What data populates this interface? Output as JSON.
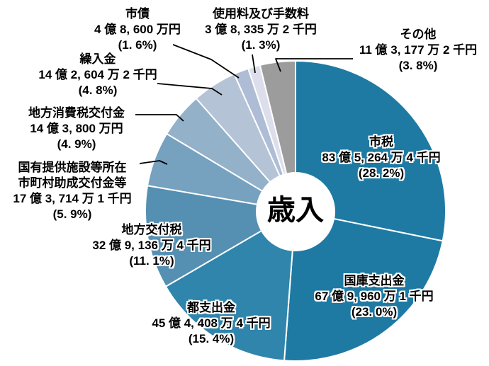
{
  "chart_data": {
    "type": "pie",
    "title": "歳入",
    "center_label": "歳入",
    "legend_position": "none",
    "start_angle": "12-oclock-clockwise",
    "slices": [
      {
        "id": "city-tax",
        "name": "市税",
        "amount": "83 億 5, 264 万 4 千円",
        "pct": "(28. 2%)",
        "percent": 28.2,
        "color": "#1e7aa3"
      },
      {
        "id": "national-treasury-disbursements",
        "name": "国庫支出金",
        "amount": "67 億 9, 960 万 1 千円",
        "pct": "(23. 0%)",
        "percent": 23.0,
        "color": "#1e7aa3"
      },
      {
        "id": "metropolitan-disbursements",
        "name": "都支出金",
        "amount": "45 億 4, 408 万 4 千円",
        "pct": "(15. 4%)",
        "percent": 15.4,
        "color": "#2f85ab"
      },
      {
        "id": "local-allocation-tax",
        "name": "地方交付税",
        "amount": "32 億 9, 136 万 4 千円",
        "pct": "(11. 1%)",
        "percent": 11.1,
        "color": "#5590b3"
      },
      {
        "id": "national-facilities-grant",
        "name": "国有提供施設等所在\n市町村助成交付金等",
        "amount": "17 億 3, 714 万 1 千円",
        "pct": "(5. 9%)",
        "percent": 5.9,
        "color": "#76a1bf"
      },
      {
        "id": "local-consumption-tax-grant",
        "name": "地方消費税交付金",
        "amount": "14 億 3, 800 万円",
        "pct": "(4. 9%)",
        "percent": 4.9,
        "color": "#93b1c9"
      },
      {
        "id": "transfer-in",
        "name": "繰入金",
        "amount": "14 億 2, 604 万 2 千円",
        "pct": "(4. 8%)",
        "percent": 4.8,
        "color": "#b5c3d7"
      },
      {
        "id": "city-bonds",
        "name": "市債",
        "amount": "4 億 8, 600 万円",
        "pct": "(1. 6%)",
        "percent": 1.6,
        "color": "#aebcd6"
      },
      {
        "id": "usage-fees",
        "name": "使用料及び手数料",
        "amount": "3 億 8, 335 万 2 千円",
        "pct": "(1. 3%)",
        "percent": 1.3,
        "color": "#dcdfeb"
      },
      {
        "id": "other",
        "name": "その他",
        "amount": "11 億 3, 177 万 2 千円",
        "pct": "(3. 8%)",
        "percent": 3.8,
        "color": "#9c9c9c"
      }
    ]
  }
}
